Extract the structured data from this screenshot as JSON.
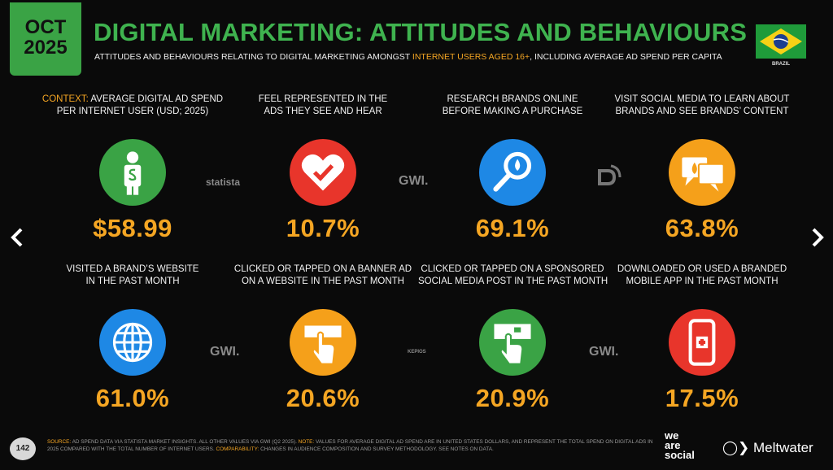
{
  "badge": {
    "month": "OCT",
    "year": "2025"
  },
  "header": {
    "title": "DIGITAL MARKETING: ATTITUDES AND BEHAVIOURS",
    "subtitle_start": "ATTITUDES AND BEHAVIOURS RELATING TO DIGITAL MARKETING AMONGST ",
    "subtitle_highlight": "INTERNET USERS AGED 16+",
    "subtitle_end": ", INCLUDING AVERAGE AD SPEND PER CAPITA"
  },
  "flag_label": "BRAZIL",
  "cards": [
    {
      "prefix": "CONTEXT:",
      "lines": [
        "AVERAGE DIGITAL AD SPEND",
        "PER INTERNET USER (USD; 2025)"
      ],
      "value": "$58.99",
      "color": "#3aa345"
    },
    {
      "lines": [
        "FEEL REPRESENTED IN THE",
        "ADS THEY SEE AND HEAR"
      ],
      "value": "10.7%",
      "color": "#e8352b"
    },
    {
      "lines": [
        "RESEARCH BRANDS ONLINE",
        "BEFORE MAKING A PURCHASE"
      ],
      "value": "69.1%",
      "color": "#1e88e5"
    },
    {
      "lines": [
        "VISIT SOCIAL MEDIA TO LEARN ABOUT",
        "BRANDS AND SEE BRANDS’ CONTENT"
      ],
      "value": "63.8%",
      "color": "#f5a01a"
    },
    {
      "lines": [
        "VISITED A BRAND’S WEBSITE",
        "IN THE PAST MONTH"
      ],
      "value": "61.0%",
      "color": "#1e88e5"
    },
    {
      "lines": [
        "CLICKED OR TAPPED ON A BANNER AD",
        "ON A WEBSITE IN THE PAST MONTH"
      ],
      "value": "20.6%",
      "color": "#f5a01a"
    },
    {
      "lines": [
        "CLICKED OR TAPPED ON A SPONSORED",
        "SOCIAL MEDIA POST IN THE PAST MONTH"
      ],
      "value": "20.9%",
      "color": "#3aa345"
    },
    {
      "lines": [
        "DOWNLOADED OR USED A BRANDED",
        "MOBILE APP IN THE PAST MONTH"
      ],
      "value": "17.5%",
      "color": "#e8352b"
    }
  ],
  "source_logos": [
    "statista",
    "GWI.",
    "GWI.",
    "KEPIOS",
    "GWI."
  ],
  "footer": {
    "page_number": "142",
    "source_label": "SOURCE:",
    "source_text": "AD SPEND DATA VIA STATISTA MARKET INSIGHTS. ALL OTHER VALUES VIA GWI (Q2 2025).",
    "note_label": "NOTE:",
    "note_text": "VALUES FOR AVERAGE DIGITAL AD SPEND ARE IN UNITED STATES DOLLARS, AND REPRESENT THE TOTAL SPEND ON DIGITAL ADS IN 2025 COMPARED WITH THE TOTAL NUMBER OF INTERNET USERS.",
    "comparability_label": "COMPARABILITY:",
    "comparability_text": "CHANGES IN AUDIENCE COMPOSITION AND SURVEY METHODOLOGY. SEE NOTES ON DATA.",
    "logo_1": [
      "we",
      "are",
      "social"
    ],
    "logo_2": "Meltwater"
  }
}
